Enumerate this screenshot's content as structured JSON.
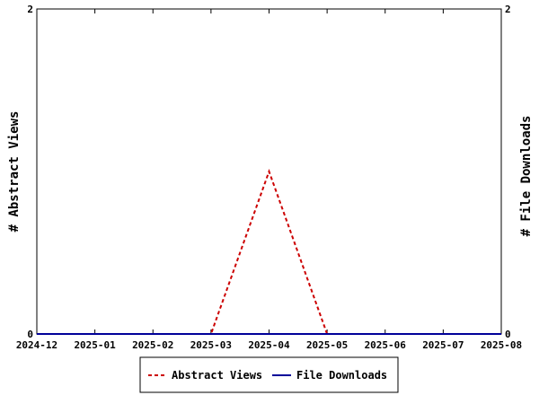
{
  "chart_data": {
    "type": "line",
    "x": [
      "2024-12",
      "2025-01",
      "2025-02",
      "2025-03",
      "2025-04",
      "2025-05",
      "2025-06",
      "2025-07",
      "2025-08"
    ],
    "series": [
      {
        "name": "Abstract Views",
        "axis": "left",
        "values": [
          0,
          0,
          0,
          0,
          1,
          0,
          0,
          0,
          0
        ],
        "color": "#cc0000",
        "dash": "dashed"
      },
      {
        "name": "File Downloads",
        "axis": "right",
        "values": [
          0,
          0,
          0,
          0,
          0,
          0,
          0,
          0,
          0
        ],
        "color": "#000099",
        "dash": "solid"
      }
    ],
    "ylabel_left": "# Abstract Views",
    "ylabel_right": "# File Downloads",
    "ylim_left": [
      0,
      2
    ],
    "ylim_right": [
      0,
      2
    ],
    "yticks_left": [
      "0",
      "2"
    ],
    "yticks_right": [
      "0",
      "2"
    ],
    "legend_position": "bottom-center",
    "grid": false
  }
}
